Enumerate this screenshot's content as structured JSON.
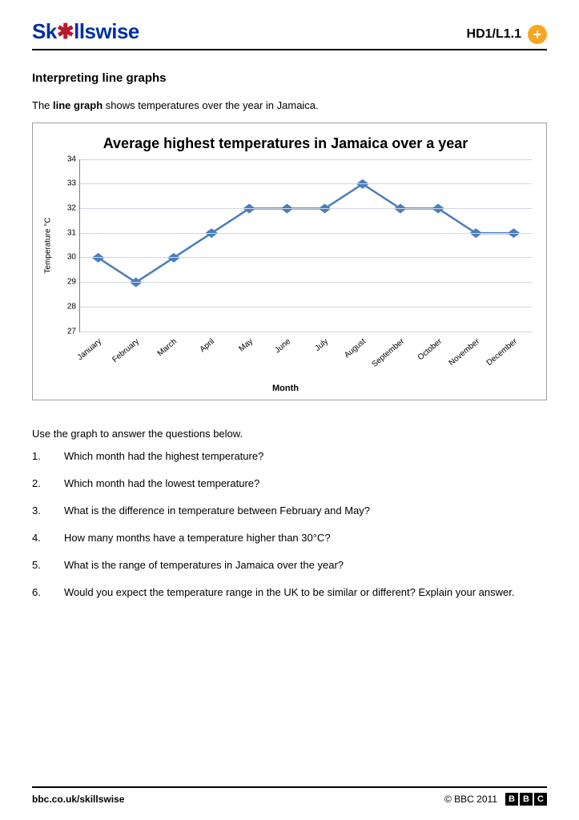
{
  "header": {
    "logo_prefix": "Sk",
    "logo_star": "✱",
    "logo_suffix": "llswise",
    "code": "HD1/L1.1"
  },
  "title": "Interpreting line graphs",
  "intro_pre": "The ",
  "intro_bold": "line graph",
  "intro_post": " shows temperatures over the year in Jamaica.",
  "chart": {
    "type": "line",
    "title": "Average highest temperatures in Jamaica over a year",
    "ylabel": "Temperature °C",
    "xlabel": "Month",
    "categories": [
      "January",
      "February",
      "March",
      "April",
      "May",
      "June",
      "July",
      "August",
      "September",
      "October",
      "November",
      "December"
    ],
    "values": [
      30,
      29,
      30,
      31,
      32,
      32,
      32,
      33,
      32,
      32,
      31,
      31
    ],
    "ylim": [
      27,
      34
    ],
    "ytick_step": 1,
    "yticks": [
      34,
      33,
      32,
      31,
      30,
      29,
      28,
      27
    ],
    "line_color": "#4a7ebb",
    "marker_color": "#4a7ebb",
    "marker_size": 4.5,
    "line_width": 2.5,
    "grid_color": "#d0d7e2",
    "background_color": "#ffffff",
    "title_fontsize": 18,
    "label_fontsize": 10,
    "marker_shape": "diamond"
  },
  "instructions": "Use the graph to answer the questions below.",
  "questions": [
    "Which month had the highest temperature?",
    "Which month had the lowest temperature?",
    "What is the difference in temperature between February and May?",
    "How many months have a temperature higher than 30°C?",
    "What is the range of temperatures in Jamaica over the year?",
    "Would you expect the temperature range in the UK to be similar or different? Explain your answer."
  ],
  "footer": {
    "url": "bbc.co.uk/skillswise",
    "copyright": "© BBC 2011",
    "bbc": [
      "B",
      "B",
      "C"
    ]
  }
}
